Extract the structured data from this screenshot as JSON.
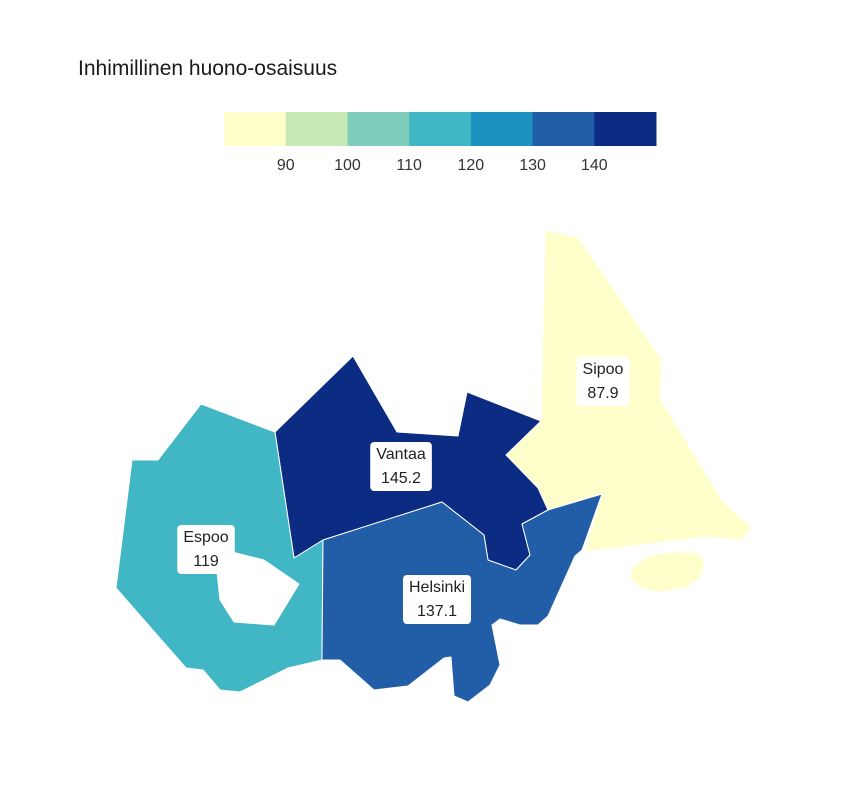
{
  "title": "Inhimillinen huono-osaisuus",
  "legend": {
    "colors": [
      "#ffffcc",
      "#c7e9b4",
      "#7fcdbb",
      "#41b6c4",
      "#1d91c0",
      "#225ea8",
      "#0c2c84"
    ],
    "ticks": [
      "90",
      "100",
      "110",
      "120",
      "130",
      "140"
    ],
    "min": 80,
    "max": 150
  },
  "regions": [
    {
      "id": "sipoo",
      "name": "Sipoo",
      "value": 87.9,
      "label": "87.9",
      "color": "#ffffcc"
    },
    {
      "id": "vantaa",
      "name": "Vantaa",
      "value": 145.2,
      "label": "145.2",
      "color": "#0c2c84"
    },
    {
      "id": "espoo",
      "name": "Espoo",
      "value": 119,
      "label": "119",
      "color": "#41b6c4"
    },
    {
      "id": "helsinki",
      "name": "Helsinki",
      "value": 137.1,
      "label": "137.1",
      "color": "#225ea8"
    }
  ]
}
